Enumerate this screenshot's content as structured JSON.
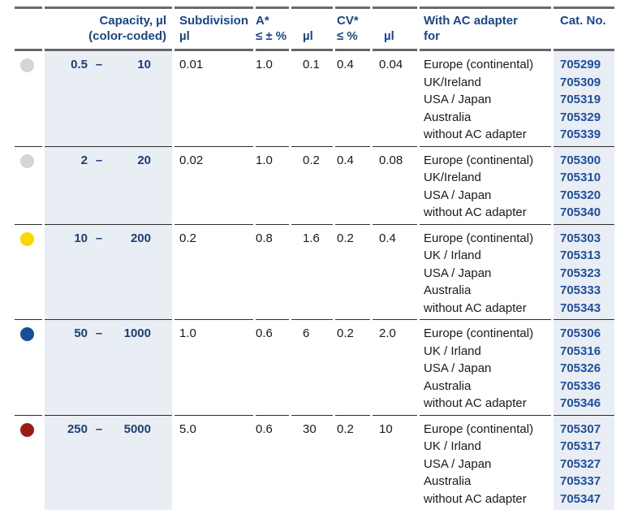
{
  "colors": {
    "header_navy": "#1b4688",
    "capacity_navy": "#1c3f72",
    "cat_no_blue": "#1e4f9e",
    "column_band_bg": "#e9edf4",
    "thick_rule": "#6b6b6d",
    "thin_rule": "#2e2e2e",
    "body_text": "#1a1a1a"
  },
  "header": {
    "capacity": [
      "Capacity, µl",
      "(color-coded)"
    ],
    "subdivision": [
      "Subdivision",
      "µl"
    ],
    "accuracy": [
      "A*",
      "≤ ± %"
    ],
    "accuracy_ul": [
      "",
      "µl"
    ],
    "cv": [
      "CV*",
      "≤ %"
    ],
    "cv_ul": [
      "",
      "µl"
    ],
    "adapter": [
      "With AC adapter",
      "for"
    ],
    "cat_no": [
      "Cat. No.",
      ""
    ]
  },
  "rows": [
    {
      "color_code": "grey",
      "dot_color": "#d2d5d9",
      "capacity_min": "0.5",
      "range_dash": "–",
      "capacity_max": "10",
      "subdivision": "0.01",
      "accuracy_pct": "1.0",
      "accuracy_ul": "0.1",
      "cv_pct": "0.4",
      "cv_ul": "0.04",
      "adapters": [
        "Europe (continental)",
        "UK/Ireland",
        "USA / Japan",
        "Australia",
        "without AC adapter"
      ],
      "cat_nos": [
        "705299",
        "705309",
        "705319",
        "705329",
        "705339"
      ]
    },
    {
      "color_code": "grey",
      "dot_color": "#d2d5d9",
      "capacity_min": "2",
      "range_dash": "–",
      "capacity_max": "20",
      "subdivision": "0.02",
      "accuracy_pct": "1.0",
      "accuracy_ul": "0.2",
      "cv_pct": "0.4",
      "cv_ul": "0.08",
      "adapters": [
        "Europe (continental)",
        "UK/Ireland",
        "USA / Japan",
        "without AC adapter"
      ],
      "cat_nos": [
        "705300",
        "705310",
        "705320",
        "705340"
      ]
    },
    {
      "color_code": "yellow",
      "dot_color": "#fed500",
      "capacity_min": "10",
      "range_dash": "–",
      "capacity_max": "200",
      "subdivision": "0.2",
      "accuracy_pct": "0.8",
      "accuracy_ul": "1.6",
      "cv_pct": "0.2",
      "cv_ul": "0.4",
      "adapters": [
        "Europe (continental)",
        "UK / Irland",
        "USA / Japan",
        "Australia",
        "without AC adapter"
      ],
      "cat_nos": [
        "705303",
        "705313",
        "705323",
        "705333",
        "705343"
      ]
    },
    {
      "color_code": "blue",
      "dot_color": "#164f94",
      "capacity_min": "50",
      "range_dash": "–",
      "capacity_max": "1000",
      "subdivision": "1.0",
      "accuracy_pct": "0.6",
      "accuracy_ul": "6",
      "cv_pct": "0.2",
      "cv_ul": "2.0",
      "adapters": [
        "Europe (continental)",
        "UK / Irland",
        "USA / Japan",
        "Australia",
        "without AC adapter"
      ],
      "cat_nos": [
        "705306",
        "705316",
        "705326",
        "705336",
        "705346"
      ]
    },
    {
      "color_code": "red",
      "dot_color": "#9b1c15",
      "capacity_min": "250",
      "range_dash": "–",
      "capacity_max": "5000",
      "subdivision": "5.0",
      "accuracy_pct": "0.6",
      "accuracy_ul": "30",
      "cv_pct": "0.2",
      "cv_ul": "10",
      "adapters": [
        "Europe (continental)",
        "UK / Irland",
        "USA / Japan",
        "Australia",
        "without AC adapter"
      ],
      "cat_nos": [
        "705307",
        "705317",
        "705327",
        "705337",
        "705347"
      ]
    }
  ]
}
